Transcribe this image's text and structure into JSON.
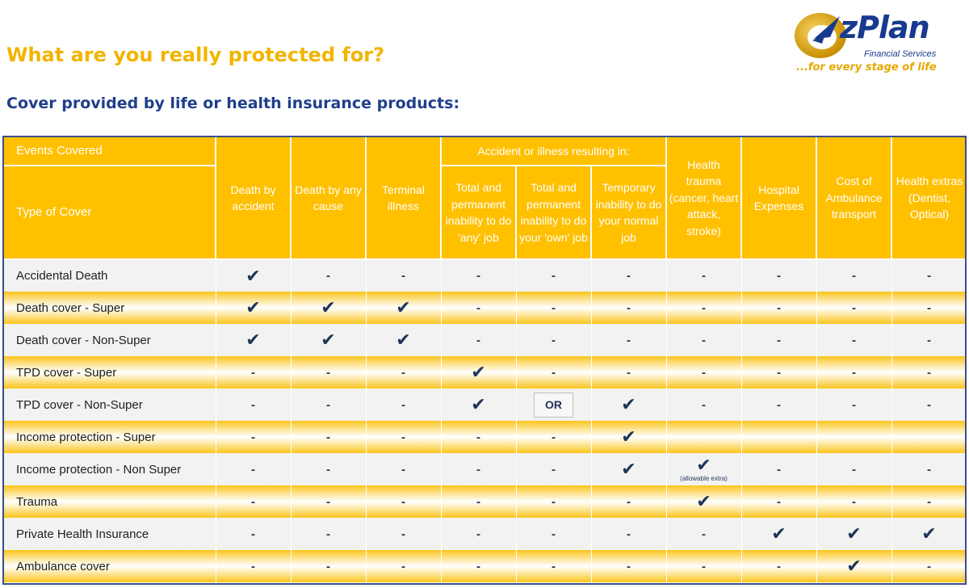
{
  "title": "What are you really protected for?",
  "subtitle": "Cover provided by life or health insurance products:",
  "logo": {
    "name": "zPlan",
    "sub": "Financial Services",
    "tagline": "...for every stage of life",
    "colors": {
      "gold": "#e5a800",
      "blue": "#173a8e"
    }
  },
  "table": {
    "events_covered": "Events Covered",
    "type_of_cover": "Type of Cover",
    "group_header": "Accident or illness resulting in:",
    "columns": [
      "Death by accident",
      "Death by any cause",
      "Terminal illness",
      "Total and permanent inability to do 'any' job",
      "Total and permanent inability to do your 'own' job",
      "Temporary inability to do your normal job",
      "Health trauma (cancer, heart attack, stroke)",
      "Hospital Expenses",
      "Cost of Ambulance transport",
      "Health extras (Dentist, Optical)"
    ],
    "check_symbol": "✔",
    "dash_symbol": "-",
    "or_label": "OR",
    "allowable_extra": "(allowable extra)",
    "rows": [
      {
        "label": "Accidental Death",
        "cells": [
          "check",
          "-",
          "-",
          "-",
          "-",
          "-",
          "-",
          "-",
          "-",
          "-"
        ]
      },
      {
        "label": "Death cover - Super",
        "cells": [
          "check",
          "check",
          "check",
          "-",
          "-",
          "-",
          "-",
          "-",
          "-",
          "-"
        ]
      },
      {
        "label": "Death cover - Non-Super",
        "cells": [
          "check",
          "check",
          "check",
          "-",
          "-",
          "-",
          "-",
          "-",
          "-",
          "-"
        ]
      },
      {
        "label": "TPD cover - Super",
        "cells": [
          "-",
          "-",
          "-",
          "check",
          "-",
          "-",
          "-",
          "-",
          "-",
          "-"
        ]
      },
      {
        "label": "TPD cover - Non-Super",
        "cells": [
          "-",
          "-",
          "-",
          "check",
          "or",
          "check",
          "-",
          "-",
          "-",
          "-"
        ]
      },
      {
        "label": "Income protection - Super",
        "cells": [
          "-",
          "-",
          "-",
          "-",
          "-",
          "check",
          "",
          "",
          "",
          ""
        ]
      },
      {
        "label": "Income protection - Non Super",
        "cells": [
          "-",
          "-",
          "-",
          "-",
          "-",
          "check",
          "check-extra",
          "-",
          "-",
          "-"
        ]
      },
      {
        "label": "Trauma",
        "cells": [
          "-",
          "-",
          "-",
          "-",
          "-",
          "-",
          "check",
          "-",
          "-",
          "-"
        ]
      },
      {
        "label": "Private Health Insurance",
        "cells": [
          "-",
          "-",
          "-",
          "-",
          "-",
          "-",
          "-",
          "check",
          "check",
          "check"
        ]
      },
      {
        "label": "Ambulance cover",
        "cells": [
          "-",
          "-",
          "-",
          "-",
          "-",
          "-",
          "-",
          "-",
          "check",
          "-"
        ]
      }
    ]
  }
}
